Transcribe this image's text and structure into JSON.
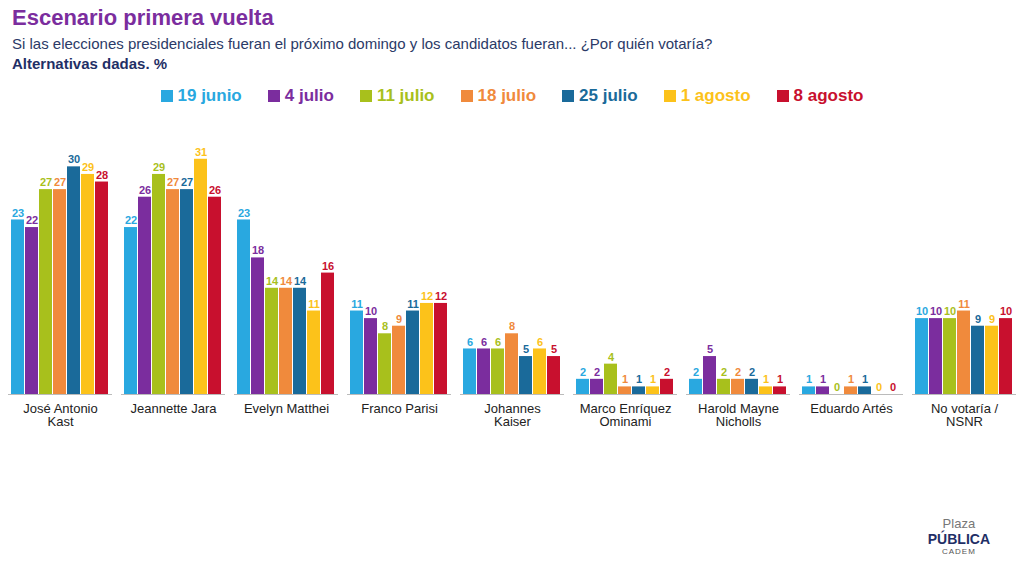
{
  "chart_data": {
    "type": "bar",
    "title": "Escenario primera vuelta",
    "subtitle": "Si las elecciones presidenciales fueran el próximo domingo y los candidatos fueran... ¿Por quién votaría?",
    "note": "Alternativas dadas. %",
    "logo": [
      "Plaza",
      "PÚBLICA",
      "CADEM"
    ],
    "categories": [
      "José Antonio Kast",
      "Jeannette Jara",
      "Evelyn Matthei",
      "Franco Parisi",
      "Johannes Kaiser",
      "Marco Enríquez Ominami",
      "Harold Mayne Nicholls",
      "Eduardo Artés",
      "No votaría / NSNR"
    ],
    "series": [
      {
        "name": "19 junio",
        "color": "#29a8e0",
        "values": [
          23,
          22,
          23,
          11,
          6,
          2,
          2,
          1,
          10
        ]
      },
      {
        "name": "4 julio",
        "color": "#7b2d9e",
        "values": [
          22,
          26,
          18,
          10,
          6,
          2,
          5,
          1,
          10
        ]
      },
      {
        "name": "11 julio",
        "color": "#a8c01c",
        "values": [
          27,
          29,
          14,
          8,
          6,
          4,
          2,
          0,
          10
        ]
      },
      {
        "name": "18 julio",
        "color": "#f08a3c",
        "values": [
          27,
          27,
          14,
          9,
          8,
          1,
          2,
          1,
          11
        ]
      },
      {
        "name": "25 julio",
        "color": "#1a6a9a",
        "values": [
          30,
          27,
          14,
          11,
          5,
          1,
          2,
          1,
          9
        ]
      },
      {
        "name": "1 agosto",
        "color": "#fcc21a",
        "values": [
          29,
          31,
          11,
          12,
          6,
          1,
          1,
          0,
          9
        ]
      },
      {
        "name": "8 agosto",
        "color": "#c8102e",
        "values": [
          28,
          26,
          16,
          12,
          5,
          2,
          1,
          0,
          10
        ]
      }
    ],
    "ylim": [
      0,
      34
    ],
    "yticks": [],
    "tick_labels": "x",
    "data_labels": true,
    "legend": "top",
    "grid": false
  }
}
